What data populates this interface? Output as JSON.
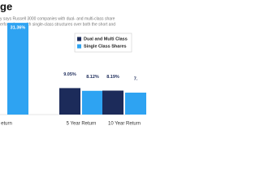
{
  "chart_data": {
    "type": "bar",
    "title": "ge",
    "subtitle": [
      "y says Russell 3000 companies with dual- and multi-class share",
      "erform those with single-class structures over both the short and"
    ],
    "categories": [
      "eturn",
      "5 Year Return",
      "10 Year Return"
    ],
    "series": [
      {
        "name": "Dual and Multi Class",
        "color": "#1c2b5a",
        "values": [
          null,
          9.05,
          8.19
        ],
        "value_labels": [
          null,
          "9.05%",
          "8.19%"
        ]
      },
      {
        "name": "Single Class Shares",
        "color": "#2ea3f2",
        "values": [
          31.36,
          8.12,
          7.5
        ],
        "value_labels": [
          "31.36%",
          "8.12%",
          "7."
        ]
      }
    ]
  }
}
